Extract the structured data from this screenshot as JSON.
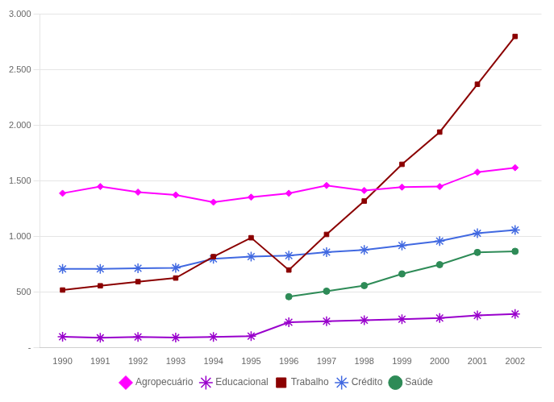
{
  "chart_data": {
    "type": "line",
    "x": [
      1990,
      1991,
      1992,
      1993,
      1994,
      1995,
      1996,
      1997,
      1998,
      1999,
      2000,
      2001,
      2002
    ],
    "xlim": [
      1989.4,
      2002.7
    ],
    "xticks": [
      1990,
      1991,
      1992,
      1993,
      1994,
      1995,
      1996,
      1997,
      1998,
      1999,
      2000,
      2001,
      2002
    ],
    "ylim": [
      0,
      3000
    ],
    "yticks": [
      {
        "value": 0,
        "label": "-"
      },
      500,
      {
        "value": 1000,
        "label": "1.000"
      },
      {
        "value": 1500,
        "label": "1.500"
      },
      {
        "value": 2000,
        "label": "2.000"
      },
      {
        "value": 2500,
        "label": "2.500"
      },
      {
        "value": 3000,
        "label": "3.000"
      }
    ],
    "grid": true,
    "legend": "bottom",
    "series": [
      {
        "name": "Agropecuário",
        "color": "#FF00FF",
        "marker": "diamond",
        "values": [
          1390,
          1450,
          1400,
          1375,
          1310,
          1355,
          1390,
          1460,
          1415,
          1445,
          1450,
          1580,
          1620
        ]
      },
      {
        "name": "Educacional",
        "color": "#9900CC",
        "marker": "star",
        "values": [
          100,
          90,
          98,
          92,
          98,
          105,
          230,
          240,
          248,
          258,
          268,
          292,
          305
        ]
      },
      {
        "name": "Trabalho",
        "color": "#8B0000",
        "marker": "square",
        "values": [
          520,
          558,
          595,
          628,
          820,
          990,
          700,
          1020,
          1320,
          1650,
          1940,
          2370,
          2800
        ]
      },
      {
        "name": "Crédito",
        "color": "#4169E1",
        "marker": "star",
        "values": [
          710,
          710,
          715,
          720,
          800,
          820,
          830,
          860,
          880,
          920,
          960,
          1030,
          1060
        ]
      },
      {
        "name": "Saúde",
        "color": "#2E8B57",
        "marker": "circle",
        "values": [
          null,
          null,
          null,
          null,
          null,
          null,
          460,
          510,
          560,
          665,
          748,
          858,
          868
        ]
      }
    ]
  }
}
